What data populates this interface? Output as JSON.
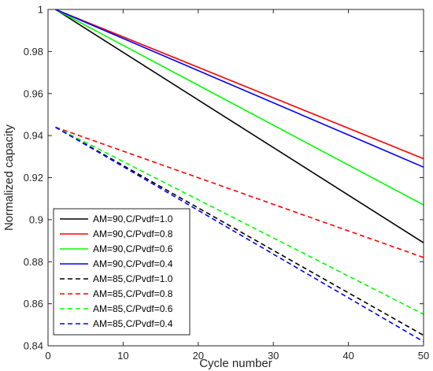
{
  "chart_data": {
    "type": "line",
    "title": "",
    "xlabel": "Cycle number",
    "ylabel": "Normalized capacity",
    "xlim": [
      0,
      50
    ],
    "ylim": [
      0.84,
      1.0
    ],
    "xticks": [
      0,
      10,
      20,
      30,
      40,
      50
    ],
    "xtick_labels": [
      "0",
      "10",
      "20",
      "30",
      "40",
      "50"
    ],
    "yticks": [
      0.84,
      0.86,
      0.88,
      0.9,
      0.92,
      0.94,
      0.96,
      0.98,
      1.0
    ],
    "ytick_labels": [
      "0.84",
      "0.86",
      "0.88",
      "0.9",
      "0.92",
      "0.94",
      "0.96",
      "0.98",
      "1"
    ],
    "grid": false,
    "legend_position": "bottom-left",
    "series": [
      {
        "name": "AM=90,C/Pvdf=1.0",
        "color": "#000000",
        "dash": "solid",
        "x": [
          1,
          50
        ],
        "y": [
          1.0,
          0.889
        ]
      },
      {
        "name": "AM=90,C/Pvdf=0.8",
        "color": "#ff0000",
        "dash": "solid",
        "x": [
          1,
          50
        ],
        "y": [
          1.0,
          0.929
        ]
      },
      {
        "name": "AM=90,C/Pvdf=0.6",
        "color": "#00ff00",
        "dash": "solid",
        "x": [
          1,
          50
        ],
        "y": [
          1.0,
          0.907
        ]
      },
      {
        "name": "AM=90,C/Pvdf=0.4",
        "color": "#0000ff",
        "dash": "solid",
        "x": [
          1,
          50
        ],
        "y": [
          1.0,
          0.925
        ]
      },
      {
        "name": "AM=85,C/Pvdf=1.0",
        "color": "#000000",
        "dash": "dashed",
        "x": [
          1,
          50
        ],
        "y": [
          0.944,
          0.845
        ]
      },
      {
        "name": "AM=85,C/Pvdf=0.8",
        "color": "#ff0000",
        "dash": "dashed",
        "x": [
          1,
          50
        ],
        "y": [
          0.944,
          0.882
        ]
      },
      {
        "name": "AM=85,C/Pvdf=0.6",
        "color": "#00ff00",
        "dash": "dashed",
        "x": [
          1,
          50
        ],
        "y": [
          0.944,
          0.855
        ]
      },
      {
        "name": "AM=85,C/Pvdf=0.4",
        "color": "#0000ff",
        "dash": "dashed",
        "x": [
          1,
          50
        ],
        "y": [
          0.944,
          0.842
        ]
      }
    ]
  }
}
